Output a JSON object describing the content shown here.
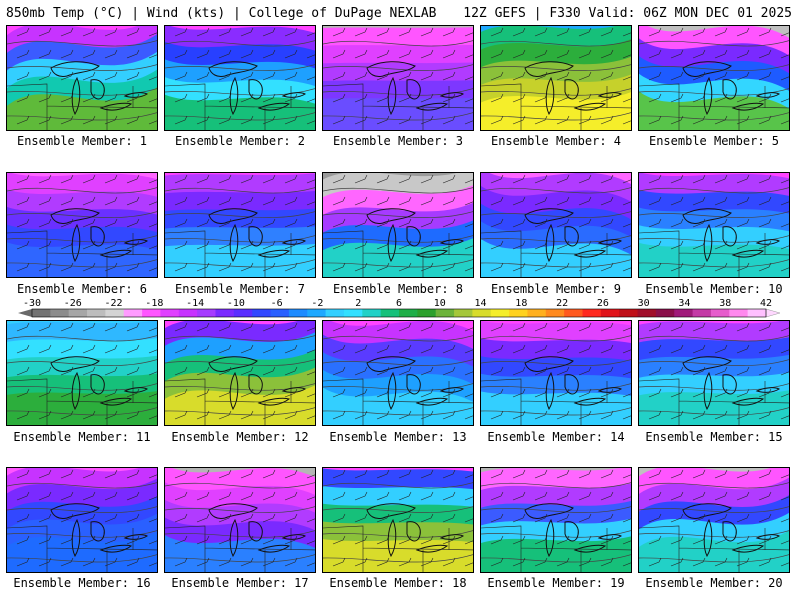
{
  "header": {
    "left": "850mb Temp (°C) | Wind (kts) | College of DuPage NEXLAB",
    "right": "12Z GEFS | F330 Valid: 06Z MON DEC 01 2025"
  },
  "members": [
    {
      "label": "Ensemble Member: 1",
      "palette": [
        "#ff44ff",
        "#c733ff",
        "#3b5bff",
        "#33cfff",
        "#11c9b0",
        "#5fba3a"
      ]
    },
    {
      "label": "Ensemble Member: 2",
      "palette": [
        "#ff44ff",
        "#8a2cff",
        "#2840ff",
        "#1ea0ff",
        "#33e0ff",
        "#16c07a"
      ]
    },
    {
      "label": "Ensemble Member: 3",
      "palette": [
        "#b5b5b5",
        "#ff55ff",
        "#e040ff",
        "#b13bff",
        "#7d37ff",
        "#6a4dff"
      ]
    },
    {
      "label": "Ensemble Member: 4",
      "palette": [
        "#1ea8ff",
        "#16c07a",
        "#2cae3c",
        "#8bc13a",
        "#c6d12b",
        "#f5ee2a"
      ]
    },
    {
      "label": "Ensemble Member: 5",
      "palette": [
        "#c0c0c0",
        "#ff55ff",
        "#7a2aff",
        "#1e5bff",
        "#33d6ff",
        "#58c44a"
      ]
    },
    {
      "label": "Ensemble Member: 6",
      "palette": [
        "#ff66ff",
        "#e040ff",
        "#b13bff",
        "#6a30ff",
        "#3248ff",
        "#2f66ff"
      ]
    },
    {
      "label": "Ensemble Member: 7",
      "palette": [
        "#ff44ff",
        "#b13bff",
        "#7a2aff",
        "#3248ff",
        "#2f80ff",
        "#33cfff"
      ]
    },
    {
      "label": "Ensemble Member: 8",
      "palette": [
        "#9a9a9a",
        "#c8c8c8",
        "#ff66ff",
        "#a63bff",
        "#1e6bff",
        "#22d1c7"
      ]
    },
    {
      "label": "Ensemble Member: 9",
      "palette": [
        "#ff66ff",
        "#b13bff",
        "#7a2aff",
        "#3248ff",
        "#2a6bff",
        "#33cfff"
      ]
    },
    {
      "label": "Ensemble Member: 10",
      "palette": [
        "#ff44ff",
        "#b13bff",
        "#3248ff",
        "#2a80ff",
        "#33cfff",
        "#22d1c7"
      ]
    },
    {
      "label": "Ensemble Member: 11",
      "palette": [
        "#33cfff",
        "#2fb8ff",
        "#33e0ff",
        "#22d1c7",
        "#16c07a",
        "#2cae3c"
      ]
    },
    {
      "label": "Ensemble Member: 12",
      "palette": [
        "#ff44ff",
        "#7a2aff",
        "#1ea0ff",
        "#16c07a",
        "#8bc13a",
        "#d8dc2b"
      ]
    },
    {
      "label": "Ensemble Member: 13",
      "palette": [
        "#ff44ff",
        "#c733ff",
        "#5a3bff",
        "#2a70ff",
        "#1ea0ff",
        "#33cfff"
      ]
    },
    {
      "label": "Ensemble Member: 14",
      "palette": [
        "#ff44ff",
        "#e040ff",
        "#7a2aff",
        "#3248ff",
        "#2a80ff",
        "#33cfff"
      ]
    },
    {
      "label": "Ensemble Member: 15",
      "palette": [
        "#ff44ff",
        "#b13bff",
        "#3248ff",
        "#2a80ff",
        "#33cfff",
        "#22d1c7"
      ]
    },
    {
      "label": "Ensemble Member: 16",
      "palette": [
        "#ff55ff",
        "#c733ff",
        "#7a2aff",
        "#3248ff",
        "#2a60ff",
        "#1e6bff"
      ]
    },
    {
      "label": "Ensemble Member: 17",
      "palette": [
        "#b5b5b5",
        "#ff55ff",
        "#e040ff",
        "#b13bff",
        "#7a2aff",
        "#2a80ff"
      ]
    },
    {
      "label": "Ensemble Member: 18",
      "palette": [
        "#ff44ff",
        "#3248ff",
        "#33cfff",
        "#16c07a",
        "#8bc13a",
        "#d8dc2b"
      ]
    },
    {
      "label": "Ensemble Member: 19",
      "palette": [
        "#b5b5b5",
        "#ff66ff",
        "#b13bff",
        "#3b5bff",
        "#33cfff",
        "#16c07a"
      ]
    },
    {
      "label": "Ensemble Member: 20",
      "palette": [
        "#c0c0c0",
        "#ff55ff",
        "#b13bff",
        "#3248ff",
        "#33cfff",
        "#22d1c7"
      ]
    }
  ],
  "colorbar": {
    "ticks": [
      "-30",
      "-26",
      "-22",
      "-18",
      "-14",
      "-10",
      "-6",
      "-2",
      "2",
      "6",
      "10",
      "14",
      "18",
      "22",
      "26",
      "30",
      "34",
      "38",
      "42"
    ],
    "colors": [
      "#737373",
      "#8c8c8c",
      "#a6a6a6",
      "#bdbdbd",
      "#d4d4d4",
      "#ff9bff",
      "#ff55ff",
      "#e040ff",
      "#c733ff",
      "#a63bff",
      "#7a2aff",
      "#5a2eff",
      "#3248ff",
      "#2a60ff",
      "#1e8bff",
      "#1ea8ff",
      "#33cfff",
      "#33e0ff",
      "#22d1c7",
      "#16c07a",
      "#1fae48",
      "#2ca02c",
      "#6cb33a",
      "#a5c73a",
      "#d8dc2b",
      "#f5ee2a",
      "#ffd21f",
      "#ffb01f",
      "#ff8a1f",
      "#ff5a1f",
      "#ff2a1f",
      "#e0141a",
      "#bf1018",
      "#a00e2a",
      "#8a0f4a",
      "#a01a7a",
      "#c43aa6",
      "#e65ccc",
      "#ff88ee",
      "#ffc0ff"
    ]
  }
}
